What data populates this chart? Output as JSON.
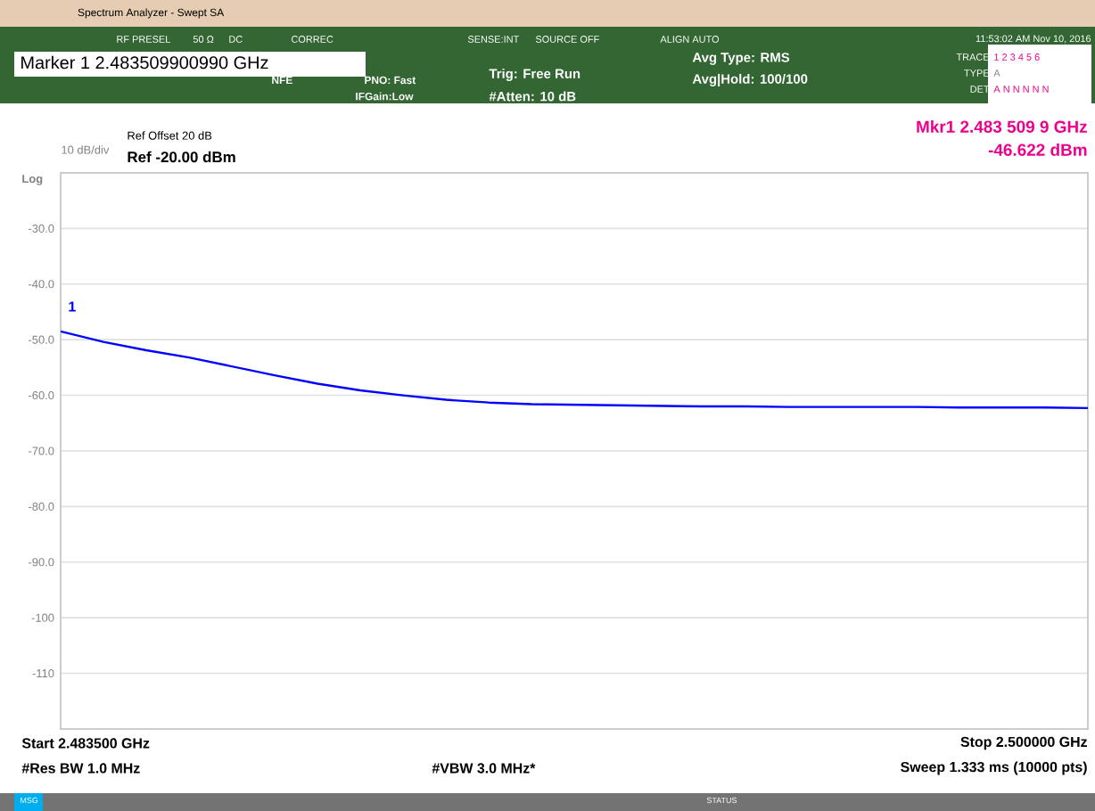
{
  "chart_data": {
    "type": "line",
    "title": "Spectrum Analyzer - Swept SA",
    "categories": [
      null,
      null,
      null,
      null,
      null,
      null,
      null,
      null,
      null,
      null,
      null,
      null,
      null,
      null,
      null,
      null,
      null,
      null,
      null,
      null,
      null,
      null,
      null,
      null,
      null
    ],
    "series": [
      {
        "color": "#0000ff",
        "values": [
          -48.5,
          -50.4,
          -51.9,
          -53.2,
          -54.8,
          -56.4,
          -57.9,
          -59.1,
          -60.0,
          -60.8,
          -61.3,
          -61.6,
          -61.7,
          -61.8,
          -61.9,
          -62.0,
          -62.0,
          -62.1,
          -62.1,
          -62.1,
          -62.1,
          -62.2,
          -62.2,
          -62.2,
          -62.3
        ]
      }
    ],
    "ylim": [
      -120,
      -20
    ],
    "yticks": [
      {
        "value": -30,
        "label": "-30.0"
      },
      {
        "value": -40,
        "label": "-40.0"
      },
      {
        "value": -50,
        "label": "-50.0"
      },
      {
        "value": -60,
        "label": "-60.0"
      },
      {
        "value": -70,
        "label": "-70.0"
      },
      {
        "value": -80,
        "label": "-80.0"
      },
      {
        "value": -90,
        "label": "-90.0"
      },
      {
        "value": -100,
        "label": "-100"
      },
      {
        "value": -110,
        "label": "-110"
      }
    ],
    "tick_labels": "y",
    "grid": "y",
    "annotations": [
      "RF PRESEL",
      "50 Ω",
      "DC",
      "CORREC",
      "SENSE:INT",
      "SOURCE OFF",
      "ALIGN AUTO",
      "11:53:02 AM Nov 10, 2016",
      "Marker 1 2.483509900990 GHz",
      "NFE",
      "PNO: Fast",
      "IFGain:Low",
      "Trig: Free Run",
      "#Atten: 10 dB",
      "Avg Type: RMS",
      "Avg|Hold: 100/100",
      "TRACE",
      "1 2 3 4 5 6",
      "TYPE",
      "A",
      "DET",
      "A N N N N N",
      "10 dB/div",
      "Log",
      "Ref Offset 20 dB",
      "Ref -20.00 dBm",
      "Mkr1 2.483 509 9 GHz",
      "-46.622 dBm",
      "Start 2.483500 GHz",
      "#Res BW 1.0 MHz",
      "#VBW 3.0 MHz*",
      "Stop 2.500000 GHz",
      "Sweep  1.333 ms (10000 pts)",
      "MSG",
      "STATUS",
      "1"
    ]
  }
}
